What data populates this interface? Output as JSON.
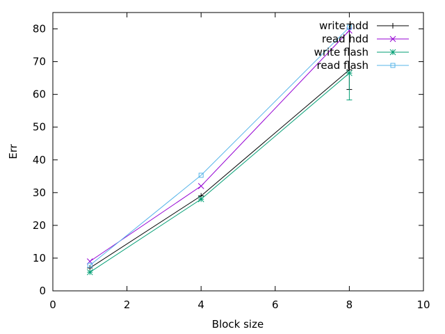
{
  "chart_data": {
    "type": "line",
    "xlabel": "Block size",
    "ylabel": "Err",
    "xlim": [
      0,
      10
    ],
    "ylim": [
      0,
      85
    ],
    "xticks": [
      0,
      2,
      4,
      6,
      8,
      10
    ],
    "yticks": [
      0,
      10,
      20,
      30,
      40,
      50,
      60,
      70,
      80
    ],
    "grid": false,
    "legend_position": "top-right",
    "series": [
      {
        "name": "write hdd",
        "color": "#000000",
        "marker": "plus",
        "x": [
          1,
          4,
          8
        ],
        "y": [
          7.0,
          29.0,
          67.5
        ],
        "errbar": {
          "x": 8,
          "low": 61.5,
          "high": 81.5
        }
      },
      {
        "name": "read hdd",
        "color": "#9400d3",
        "marker": "cross",
        "x": [
          1,
          4,
          8
        ],
        "y": [
          9.0,
          32.0,
          79.5
        ],
        "errbar": null
      },
      {
        "name": "write flash",
        "color": "#009e73",
        "marker": "star",
        "x": [
          1,
          4,
          8
        ],
        "y": [
          5.7,
          28.0,
          66.5
        ],
        "errbar": {
          "x": 8,
          "low": 58.3,
          "high": 66.5
        }
      },
      {
        "name": "read flash",
        "color": "#56b4e9",
        "marker": "square",
        "x": [
          1,
          4,
          8
        ],
        "y": [
          7.8,
          35.3,
          80.5
        ],
        "errbar": null
      }
    ]
  }
}
